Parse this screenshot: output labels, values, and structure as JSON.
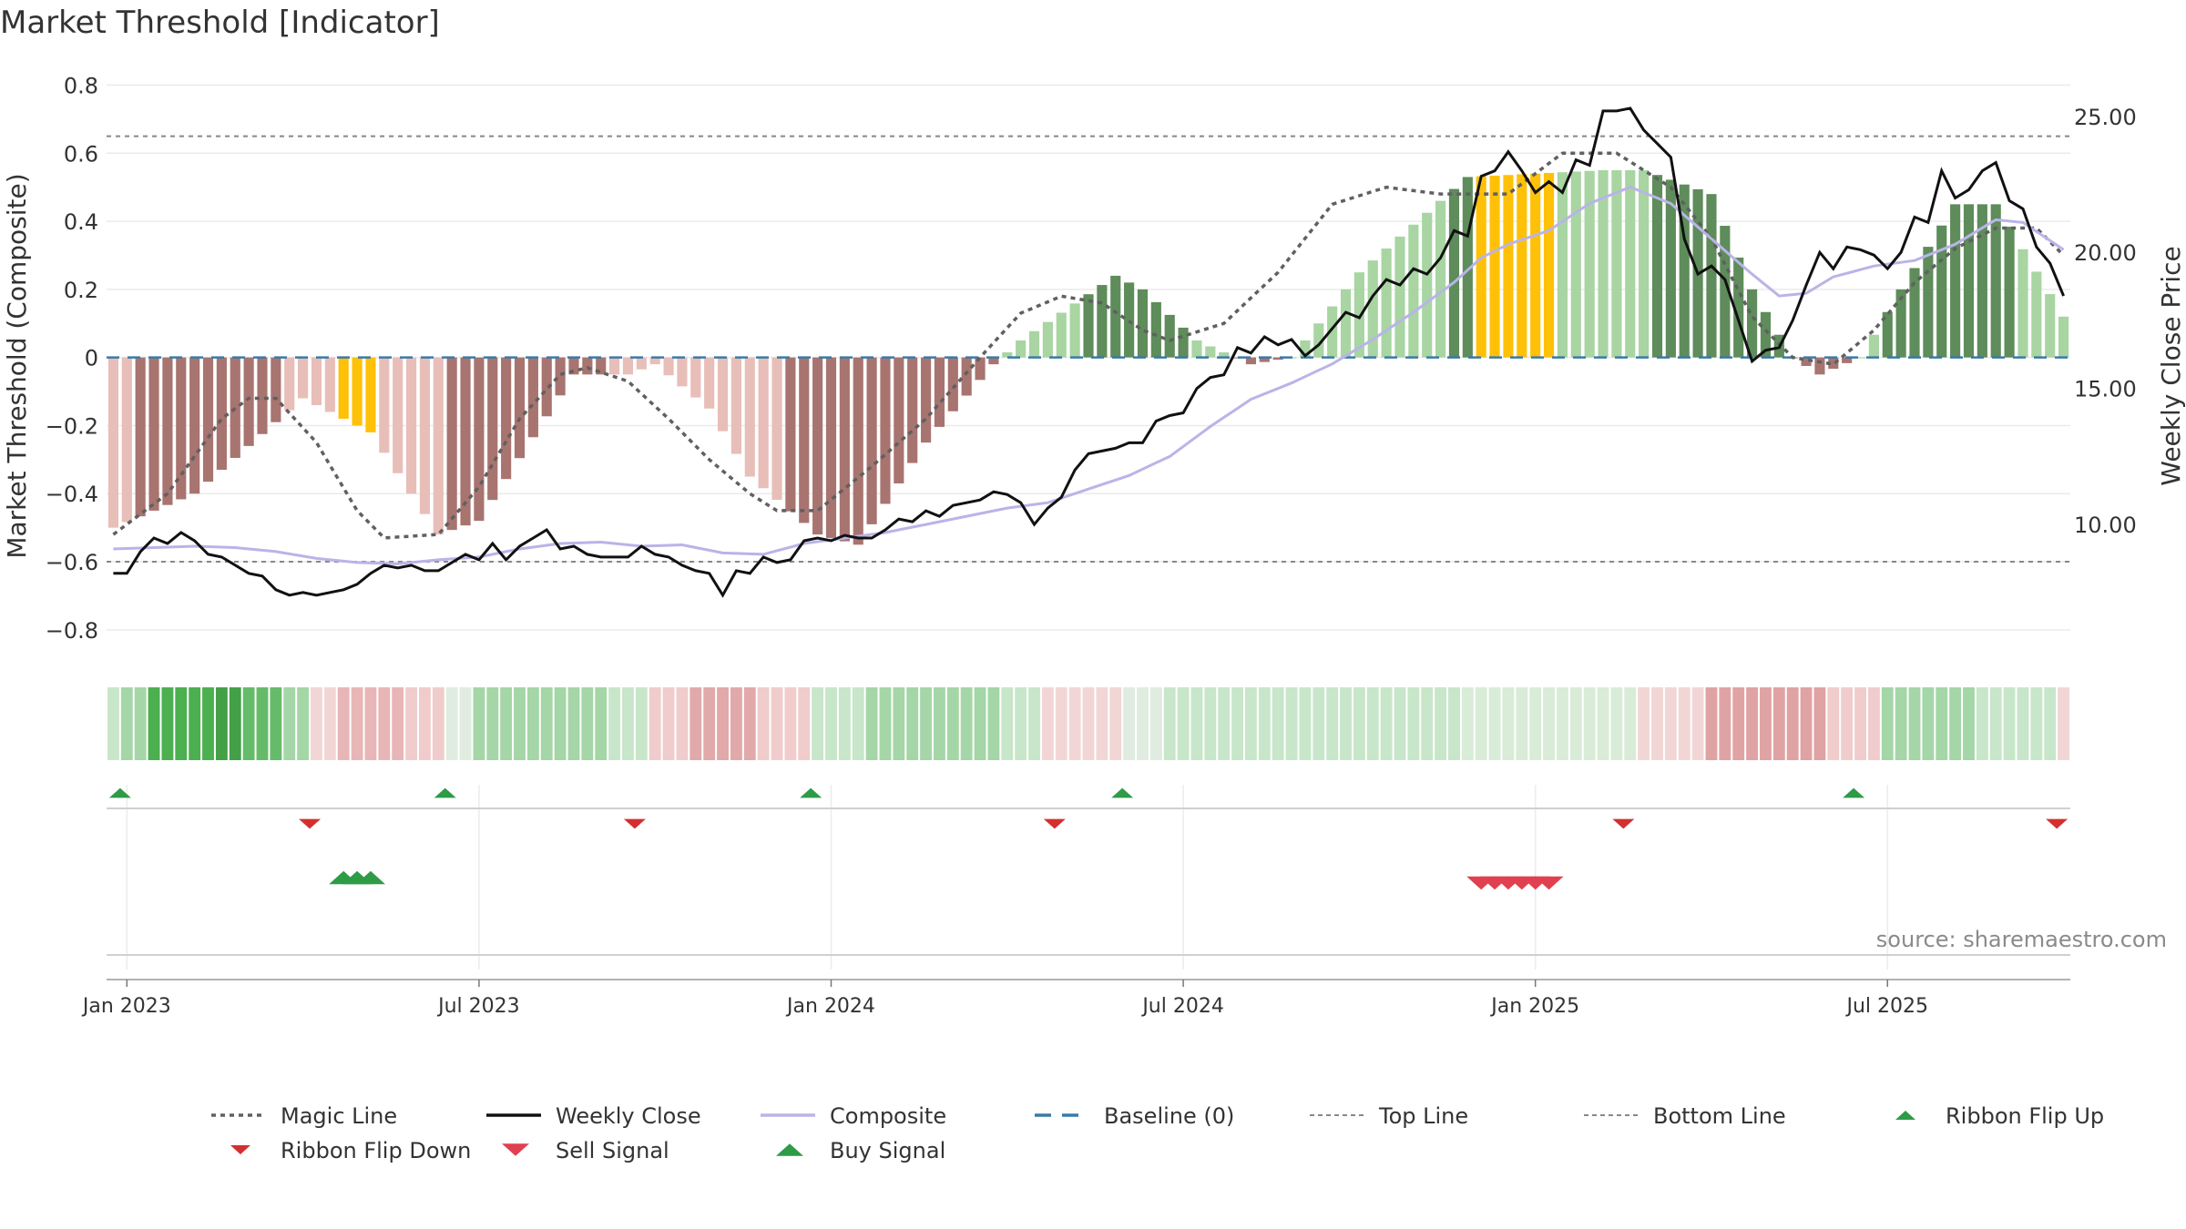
{
  "chart_data": {
    "type": "bar+line",
    "title": "Market Threshold [Indicator]",
    "ylabel_left": "Market Threshold (Composite)",
    "ylabel_right": "Weekly Close Price",
    "source": "source: sharemaestro.com",
    "ylim_left": [
      -0.87,
      0.82
    ],
    "ylim_right": [
      5.25,
      26.4
    ],
    "yticks_left": [
      {
        "v": 0.8,
        "label": "0.8"
      },
      {
        "v": 0.6,
        "label": "0.6"
      },
      {
        "v": 0.4,
        "label": "0.4"
      },
      {
        "v": 0.2,
        "label": "0.2"
      },
      {
        "v": 0,
        "label": "0"
      },
      {
        "v": -0.2,
        "label": "−0.2"
      },
      {
        "v": -0.4,
        "label": "−0.4"
      },
      {
        "v": -0.6,
        "label": "−0.6"
      },
      {
        "v": -0.8,
        "label": "−0.8"
      }
    ],
    "yticks_right": [
      {
        "v": 25,
        "label": "25.00"
      },
      {
        "v": 20,
        "label": "20.00"
      },
      {
        "v": 15,
        "label": "15.00"
      },
      {
        "v": 10,
        "label": "10.00"
      }
    ],
    "xticks": [
      {
        "week": 1,
        "label": "Jan 2023"
      },
      {
        "week": 27,
        "label": "Jul 2023"
      },
      {
        "week": 53,
        "label": "Jan 2024"
      },
      {
        "week": 79,
        "label": "Jul 2024"
      },
      {
        "week": 105,
        "label": "Jan 2025"
      },
      {
        "week": 131,
        "label": "Jul 2025"
      }
    ],
    "weeks": 145,
    "top_line": 0.65,
    "bottom_line": -0.6,
    "baseline": 0,
    "composite_segments": [
      [
        0,
        -0.5
      ],
      [
        6,
        -0.4
      ],
      [
        14,
        -0.12
      ],
      [
        19,
        -0.22
      ],
      [
        24,
        -0.52
      ],
      [
        27,
        -0.48
      ],
      [
        34,
        -0.05
      ],
      [
        38,
        -0.05
      ],
      [
        40,
        -0.02
      ],
      [
        44,
        -0.15
      ],
      [
        47,
        -0.35
      ],
      [
        52,
        -0.52
      ],
      [
        55,
        -0.55
      ],
      [
        60,
        -0.25
      ],
      [
        65,
        -0.02
      ],
      [
        67,
        0.05
      ],
      [
        74,
        0.24
      ],
      [
        76,
        0.2
      ],
      [
        80,
        0.05
      ],
      [
        84,
        -0.02
      ],
      [
        87,
        0.0
      ],
      [
        92,
        0.25
      ],
      [
        100,
        0.53
      ],
      [
        110,
        0.55
      ],
      [
        113,
        0.55
      ],
      [
        118,
        0.48
      ],
      [
        121,
        0.2
      ],
      [
        124,
        0.0
      ],
      [
        126,
        -0.05
      ],
      [
        129,
        0.0
      ],
      [
        132,
        0.2
      ],
      [
        136,
        0.45
      ],
      [
        139,
        0.45
      ],
      [
        144,
        0.12
      ]
    ],
    "magic_segments": [
      [
        0,
        -0.52
      ],
      [
        4,
        -0.4
      ],
      [
        8,
        -0.18
      ],
      [
        10,
        -0.12
      ],
      [
        12,
        -0.12
      ],
      [
        15,
        -0.25
      ],
      [
        18,
        -0.45
      ],
      [
        20,
        -0.53
      ],
      [
        24,
        -0.52
      ],
      [
        27,
        -0.38
      ],
      [
        30,
        -0.18
      ],
      [
        33,
        -0.05
      ],
      [
        35,
        -0.03
      ],
      [
        38,
        -0.07
      ],
      [
        41,
        -0.18
      ],
      [
        44,
        -0.3
      ],
      [
        47,
        -0.4
      ],
      [
        49,
        -0.45
      ],
      [
        52,
        -0.45
      ],
      [
        56,
        -0.32
      ],
      [
        60,
        -0.18
      ],
      [
        64,
        0.0
      ],
      [
        67,
        0.13
      ],
      [
        70,
        0.18
      ],
      [
        73,
        0.16
      ],
      [
        76,
        0.08
      ],
      [
        78,
        0.05
      ],
      [
        82,
        0.1
      ],
      [
        86,
        0.25
      ],
      [
        90,
        0.45
      ],
      [
        94,
        0.5
      ],
      [
        98,
        0.48
      ],
      [
        103,
        0.48
      ],
      [
        107,
        0.6
      ],
      [
        111,
        0.6
      ],
      [
        115,
        0.5
      ],
      [
        118,
        0.35
      ],
      [
        121,
        0.12
      ],
      [
        124,
        0.0
      ],
      [
        127,
        -0.02
      ],
      [
        130,
        0.08
      ],
      [
        133,
        0.22
      ],
      [
        136,
        0.32
      ],
      [
        139,
        0.38
      ],
      [
        142,
        0.38
      ],
      [
        144,
        0.3
      ]
    ],
    "close_segments": [
      [
        0,
        8.2
      ],
      [
        1,
        8.2
      ],
      [
        2,
        9.0
      ],
      [
        3,
        9.5
      ],
      [
        4,
        9.3
      ],
      [
        5,
        9.7
      ],
      [
        6,
        9.4
      ],
      [
        7,
        8.9
      ],
      [
        8,
        8.8
      ],
      [
        9,
        8.5
      ],
      [
        10,
        8.2
      ],
      [
        11,
        8.1
      ],
      [
        12,
        7.6
      ],
      [
        13,
        7.4
      ],
      [
        14,
        7.5
      ],
      [
        15,
        7.4
      ],
      [
        16,
        7.5
      ],
      [
        17,
        7.6
      ],
      [
        18,
        7.8
      ],
      [
        19,
        8.2
      ],
      [
        20,
        8.5
      ],
      [
        21,
        8.4
      ],
      [
        22,
        8.5
      ],
      [
        23,
        8.3
      ],
      [
        24,
        8.3
      ],
      [
        25,
        8.6
      ],
      [
        26,
        8.9
      ],
      [
        27,
        8.7
      ],
      [
        28,
        9.3
      ],
      [
        29,
        8.7
      ],
      [
        30,
        9.2
      ],
      [
        31,
        9.5
      ],
      [
        32,
        9.8
      ],
      [
        33,
        9.1
      ],
      [
        34,
        9.2
      ],
      [
        35,
        8.9
      ],
      [
        36,
        8.8
      ],
      [
        37,
        8.8
      ],
      [
        38,
        8.8
      ],
      [
        39,
        9.2
      ],
      [
        40,
        8.9
      ],
      [
        41,
        8.8
      ],
      [
        42,
        8.5
      ],
      [
        43,
        8.3
      ],
      [
        44,
        8.2
      ],
      [
        45,
        7.4
      ],
      [
        46,
        8.3
      ],
      [
        47,
        8.2
      ],
      [
        48,
        8.8
      ],
      [
        49,
        8.6
      ],
      [
        50,
        8.7
      ],
      [
        51,
        9.4
      ],
      [
        52,
        9.5
      ],
      [
        53,
        9.4
      ],
      [
        54,
        9.6
      ],
      [
        55,
        9.5
      ],
      [
        56,
        9.5
      ],
      [
        57,
        9.8
      ],
      [
        58,
        10.2
      ],
      [
        59,
        10.1
      ],
      [
        60,
        10.5
      ],
      [
        61,
        10.3
      ],
      [
        62,
        10.7
      ],
      [
        63,
        10.8
      ],
      [
        64,
        10.9
      ],
      [
        65,
        11.2
      ],
      [
        66,
        11.1
      ],
      [
        67,
        10.8
      ],
      [
        68,
        10.0
      ],
      [
        69,
        10.6
      ],
      [
        70,
        11.0
      ],
      [
        71,
        12.0
      ],
      [
        72,
        12.6
      ],
      [
        73,
        12.7
      ],
      [
        74,
        12.8
      ],
      [
        75,
        13.0
      ],
      [
        76,
        13.0
      ],
      [
        77,
        13.8
      ],
      [
        78,
        14.0
      ],
      [
        79,
        14.1
      ],
      [
        80,
        15.0
      ],
      [
        81,
        15.4
      ],
      [
        82,
        15.5
      ],
      [
        83,
        16.5
      ],
      [
        84,
        16.3
      ],
      [
        85,
        16.9
      ],
      [
        86,
        16.6
      ],
      [
        87,
        16.8
      ],
      [
        88,
        16.2
      ],
      [
        89,
        16.6
      ],
      [
        90,
        17.2
      ],
      [
        91,
        17.8
      ],
      [
        92,
        17.6
      ],
      [
        93,
        18.4
      ],
      [
        94,
        19.0
      ],
      [
        95,
        18.8
      ],
      [
        96,
        19.4
      ],
      [
        97,
        19.2
      ],
      [
        98,
        19.8
      ],
      [
        99,
        20.8
      ],
      [
        100,
        20.6
      ],
      [
        101,
        22.8
      ],
      [
        102,
        23.0
      ],
      [
        103,
        23.7
      ],
      [
        104,
        23.0
      ],
      [
        105,
        22.2
      ],
      [
        106,
        22.6
      ],
      [
        107,
        22.2
      ],
      [
        108,
        23.4
      ],
      [
        109,
        23.2
      ],
      [
        110,
        25.2
      ],
      [
        111,
        25.2
      ],
      [
        112,
        25.3
      ],
      [
        113,
        24.5
      ],
      [
        114,
        24.0
      ],
      [
        115,
        23.5
      ],
      [
        116,
        20.5
      ],
      [
        117,
        19.2
      ],
      [
        118,
        19.5
      ],
      [
        119,
        19.0
      ],
      [
        120,
        17.5
      ],
      [
        121,
        16.0
      ],
      [
        122,
        16.4
      ],
      [
        123,
        16.5
      ],
      [
        124,
        17.5
      ],
      [
        125,
        18.8
      ],
      [
        126,
        20.0
      ],
      [
        127,
        19.4
      ],
      [
        128,
        20.2
      ],
      [
        129,
        20.1
      ],
      [
        130,
        19.9
      ],
      [
        131,
        19.4
      ],
      [
        132,
        20.0
      ],
      [
        133,
        21.3
      ],
      [
        134,
        21.1
      ],
      [
        135,
        23.0
      ],
      [
        136,
        22.0
      ],
      [
        137,
        22.3
      ],
      [
        138,
        23.0
      ],
      [
        139,
        23.3
      ],
      [
        140,
        21.9
      ],
      [
        141,
        21.6
      ],
      [
        142,
        20.2
      ],
      [
        143,
        19.6
      ],
      [
        144,
        18.4
      ]
    ],
    "composite_smooth_segments": [
      [
        0,
        9.1
      ],
      [
        3,
        9.15
      ],
      [
        6,
        9.2
      ],
      [
        9,
        9.15
      ],
      [
        12,
        9.0
      ],
      [
        15,
        8.75
      ],
      [
        18,
        8.6
      ],
      [
        21,
        8.55
      ],
      [
        24,
        8.7
      ],
      [
        27,
        8.8
      ],
      [
        30,
        9.1
      ],
      [
        33,
        9.3
      ],
      [
        36,
        9.35
      ],
      [
        39,
        9.2
      ],
      [
        42,
        9.25
      ],
      [
        45,
        8.95
      ],
      [
        48,
        8.9
      ],
      [
        51,
        9.3
      ],
      [
        54,
        9.5
      ],
      [
        57,
        9.7
      ],
      [
        60,
        10.0
      ],
      [
        63,
        10.3
      ],
      [
        66,
        10.6
      ],
      [
        69,
        10.8
      ],
      [
        72,
        11.3
      ],
      [
        75,
        11.8
      ],
      [
        78,
        12.5
      ],
      [
        81,
        13.6
      ],
      [
        84,
        14.6
      ],
      [
        87,
        15.2
      ],
      [
        90,
        15.9
      ],
      [
        93,
        16.8
      ],
      [
        96,
        17.8
      ],
      [
        99,
        18.9
      ],
      [
        101,
        19.8
      ],
      [
        103,
        20.3
      ],
      [
        106,
        20.8
      ],
      [
        109,
        21.8
      ],
      [
        112,
        22.4
      ],
      [
        115,
        21.8
      ],
      [
        118,
        20.5
      ],
      [
        121,
        19.2
      ],
      [
        123,
        18.4
      ],
      [
        125,
        18.5
      ],
      [
        127,
        19.1
      ],
      [
        130,
        19.5
      ],
      [
        133,
        19.7
      ],
      [
        136,
        20.3
      ],
      [
        139,
        21.2
      ],
      [
        141,
        21.1
      ],
      [
        144,
        20.1
      ]
    ],
    "top_line_value": 0.65,
    "bottom_line_value": -0.6,
    "ribbon_segments": [
      [
        0,
        1,
        "#c8e6c9"
      ],
      [
        1,
        3,
        "#a5d6a7"
      ],
      [
        3,
        8,
        "#4caf50"
      ],
      [
        8,
        10,
        "#43a047"
      ],
      [
        10,
        13,
        "#66bb6a"
      ],
      [
        13,
        15,
        "#a5d6a7"
      ],
      [
        15,
        17,
        "#f2d6d6"
      ],
      [
        17,
        22,
        "#e8b6b6"
      ],
      [
        22,
        25,
        "#f0cccc"
      ],
      [
        25,
        27,
        "#e0ecdf"
      ],
      [
        27,
        37,
        "#a5d6a7"
      ],
      [
        37,
        40,
        "#c8e6c9"
      ],
      [
        40,
        43,
        "#f0cccc"
      ],
      [
        43,
        48,
        "#e1a9a9"
      ],
      [
        48,
        52,
        "#f0cccc"
      ],
      [
        52,
        56,
        "#c8e6c9"
      ],
      [
        56,
        66,
        "#a5d6a7"
      ],
      [
        66,
        69,
        "#c8e6c9"
      ],
      [
        69,
        75,
        "#f2d6d6"
      ],
      [
        75,
        78,
        "#e0ecdf"
      ],
      [
        78,
        100,
        "#c8e6c9"
      ],
      [
        100,
        113,
        "#d8ecd7"
      ],
      [
        113,
        118,
        "#f2d6d6"
      ],
      [
        118,
        127,
        "#e0a3a3"
      ],
      [
        127,
        131,
        "#f0cccc"
      ],
      [
        131,
        138,
        "#a5d6a7"
      ],
      [
        138,
        144,
        "#c8e6c9"
      ],
      [
        144,
        145,
        "#f2d6d6"
      ]
    ],
    "ribbon_flip_up_weeks": [
      1,
      25,
      52,
      75,
      129
    ],
    "ribbon_flip_down_weeks": [
      15,
      39,
      70,
      112,
      144
    ],
    "buy_signal_weeks": [
      17,
      18,
      19
    ],
    "sell_signal_weeks": [
      101,
      102,
      103,
      104,
      105,
      106
    ],
    "bar_color_scheme": {
      "neg_light": "#e8beb9",
      "neg_dark": "#a87470",
      "pos_light": "#a8d5a2",
      "pos_dark": "#5e8c5a",
      "extreme": "#ffc107"
    },
    "extreme_bar_weeks": [
      17,
      18,
      19,
      101,
      102,
      103,
      104,
      105,
      106
    ],
    "legend": [
      {
        "label": "Magic Line",
        "kind": "dotted",
        "color": "#606060"
      },
      {
        "label": "Weekly Close",
        "kind": "solid",
        "color": "#111111"
      },
      {
        "label": "Composite",
        "kind": "solid",
        "color": "#b9b4e8"
      },
      {
        "label": "Baseline (0)",
        "kind": "dashed",
        "color": "#3a7aa8"
      },
      {
        "label": "Top Line",
        "kind": "dotted-thin",
        "color": "#888888"
      },
      {
        "label": "Bottom Line",
        "kind": "dotted-thin",
        "color": "#888888"
      },
      {
        "label": "Ribbon Flip Up",
        "kind": "tri-up-small",
        "color": "#2e9b47"
      },
      {
        "label": "Ribbon Flip Down",
        "kind": "tri-down-small",
        "color": "#d32f2f"
      },
      {
        "label": "Sell Signal",
        "kind": "tri-down",
        "color": "#e04050"
      },
      {
        "label": "Buy Signal",
        "kind": "tri-up",
        "color": "#2e9b47"
      }
    ],
    "colors": {
      "close": "#111111",
      "composite_line": "#b9b4e8",
      "magic": "#606060",
      "baseline": "#3a7aa8",
      "threshold": "#888888",
      "grid": "#ebebeb"
    }
  }
}
